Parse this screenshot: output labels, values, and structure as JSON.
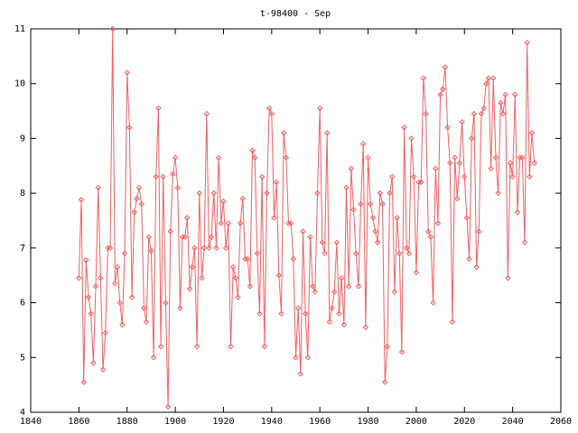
{
  "chart_data": {
    "type": "line",
    "title": "t-98400 - Sep",
    "x": [
      1860,
      1861,
      1862,
      1863,
      1864,
      1865,
      1866,
      1867,
      1868,
      1869,
      1870,
      1871,
      1872,
      1873,
      1874,
      1875,
      1876,
      1877,
      1878,
      1879,
      1880,
      1881,
      1882,
      1883,
      1884,
      1885,
      1886,
      1887,
      1888,
      1889,
      1890,
      1891,
      1892,
      1893,
      1894,
      1895,
      1896,
      1897,
      1898,
      1899,
      1900,
      1901,
      1902,
      1903,
      1904,
      1905,
      1906,
      1907,
      1908,
      1909,
      1910,
      1911,
      1912,
      1913,
      1914,
      1915,
      1916,
      1917,
      1918,
      1919,
      1920,
      1921,
      1922,
      1923,
      1924,
      1925,
      1926,
      1927,
      1928,
      1929,
      1930,
      1931,
      1932,
      1933,
      1934,
      1935,
      1936,
      1937,
      1938,
      1939,
      1940,
      1941,
      1942,
      1943,
      1944,
      1945,
      1946,
      1947,
      1948,
      1949,
      1950,
      1951,
      1952,
      1953,
      1954,
      1955,
      1956,
      1957,
      1958,
      1959,
      1960,
      1961,
      1962,
      1963,
      1964,
      1965,
      1966,
      1967,
      1968,
      1969,
      1970,
      1971,
      1972,
      1973,
      1974,
      1975,
      1976,
      1977,
      1978,
      1979,
      1980,
      1981,
      1982,
      1983,
      1984,
      1985,
      1986,
      1987,
      1988,
      1989,
      1990,
      1991,
      1992,
      1993,
      1994,
      1995,
      1996,
      1997,
      1998,
      1999,
      2000,
      2001,
      2002,
      2003,
      2004,
      2005,
      2006,
      2007,
      2008,
      2009,
      2010,
      2011,
      2012,
      2013,
      2014,
      2015,
      2016,
      2017,
      2018,
      2019,
      2020,
      2021,
      2022,
      2023,
      2024,
      2025,
      2026,
      2027,
      2028,
      2029,
      2030,
      2031,
      2032,
      2033,
      2034,
      2035,
      2036,
      2037,
      2038,
      2039,
      2040,
      2041,
      2042,
      2043,
      2044,
      2045,
      2046,
      2047,
      2048,
      2049
    ],
    "series": [
      {
        "color": "#f06060",
        "values": [
          6.45,
          7.88,
          4.55,
          6.78,
          6.1,
          5.8,
          4.9,
          6.3,
          8.1,
          6.45,
          4.78,
          5.45,
          7.0,
          7.0,
          11.0,
          6.35,
          6.65,
          6.0,
          5.6,
          6.9,
          10.2,
          9.2,
          6.1,
          7.65,
          7.9,
          8.1,
          7.8,
          5.9,
          5.65,
          7.2,
          6.95,
          5.0,
          8.3,
          9.55,
          5.2,
          8.3,
          6.0,
          4.1,
          7.3,
          8.35,
          8.65,
          8.1,
          5.9,
          7.2,
          7.2,
          7.55,
          6.25,
          6.65,
          7.0,
          5.2,
          8.0,
          6.45,
          7.0,
          9.45,
          7.0,
          7.2,
          8.0,
          7.0,
          8.65,
          7.45,
          7.85,
          7.0,
          7.45,
          5.2,
          6.65,
          6.45,
          6.1,
          7.45,
          7.9,
          6.8,
          6.8,
          6.3,
          8.78,
          8.65,
          6.9,
          5.8,
          8.3,
          5.2,
          8.0,
          9.55,
          9.45,
          7.55,
          8.2,
          6.5,
          5.8,
          9.1,
          8.65,
          7.45,
          7.45,
          6.8,
          5.0,
          5.9,
          4.7,
          7.3,
          5.8,
          5.0,
          7.2,
          6.3,
          6.2,
          8.0,
          9.55,
          7.1,
          6.9,
          9.1,
          5.65,
          5.9,
          6.2,
          7.1,
          5.8,
          6.45,
          5.6,
          8.1,
          6.3,
          8.45,
          7.7,
          6.9,
          6.3,
          7.8,
          8.9,
          5.55,
          8.65,
          7.8,
          7.55,
          7.3,
          7.1,
          8.0,
          7.8,
          4.55,
          5.2,
          8.0,
          8.3,
          6.2,
          7.55,
          6.9,
          5.1,
          9.2,
          7.0,
          6.9,
          9.0,
          8.3,
          6.55,
          8.2,
          8.2,
          10.1,
          9.45,
          7.3,
          7.2,
          6.0,
          8.45,
          7.45,
          9.8,
          9.9,
          10.3,
          9.2,
          8.55,
          5.65,
          8.65,
          7.9,
          8.55,
          9.3,
          8.3,
          7.55,
          6.8,
          9.0,
          9.45,
          6.65,
          7.3,
          9.45,
          9.55,
          10.0,
          10.1,
          8.45,
          10.1,
          8.65,
          8.0,
          9.65,
          9.45,
          9.8,
          6.45,
          8.55,
          8.3,
          9.8,
          7.65,
          8.65,
          8.65,
          7.1,
          10.75,
          8.3,
          9.1,
          8.55
        ]
      }
    ],
    "xlim": [
      1840,
      2060
    ],
    "xticks": [
      1840,
      1860,
      1880,
      1900,
      1920,
      1940,
      1960,
      1980,
      2000,
      2020,
      2040,
      2060
    ],
    "ylim": [
      4,
      11
    ],
    "yticks": [
      4,
      5,
      6,
      7,
      8,
      9,
      10,
      11
    ]
  }
}
